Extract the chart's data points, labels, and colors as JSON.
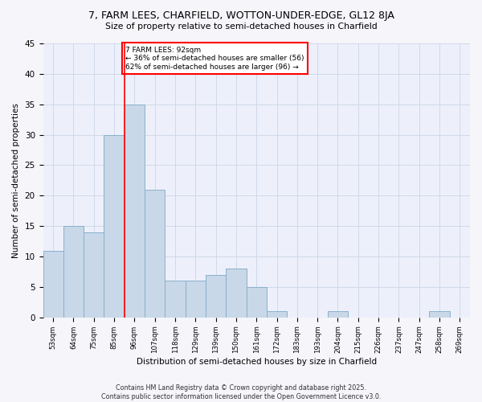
{
  "title1": "7, FARM LEES, CHARFIELD, WOTTON-UNDER-EDGE, GL12 8JA",
  "title2": "Size of property relative to semi-detached houses in Charfield",
  "xlabel": "Distribution of semi-detached houses by size in Charfield",
  "ylabel": "Number of semi-detached properties",
  "categories": [
    "53sqm",
    "64sqm",
    "75sqm",
    "85sqm",
    "96sqm",
    "107sqm",
    "118sqm",
    "129sqm",
    "139sqm",
    "150sqm",
    "161sqm",
    "172sqm",
    "183sqm",
    "193sqm",
    "204sqm",
    "215sqm",
    "226sqm",
    "237sqm",
    "247sqm",
    "258sqm",
    "269sqm"
  ],
  "values": [
    11,
    15,
    14,
    30,
    35,
    21,
    6,
    6,
    7,
    8,
    5,
    1,
    0,
    0,
    1,
    0,
    0,
    0,
    0,
    1,
    0
  ],
  "bar_color": "#c8d8e8",
  "bar_edge_color": "#8ab0cc",
  "subject_line_color": "red",
  "annotation_text": "7 FARM LEES: 92sqm\n← 36% of semi-detached houses are smaller (56)\n62% of semi-detached houses are larger (96) →",
  "ylim": [
    0,
    45
  ],
  "yticks": [
    0,
    5,
    10,
    15,
    20,
    25,
    30,
    35,
    40,
    45
  ],
  "grid_color": "#d0d8e8",
  "bg_color": "#edf0fb",
  "fig_bg_color": "#f5f5fa",
  "footer1": "Contains HM Land Registry data © Crown copyright and database right 2025.",
  "footer2": "Contains public sector information licensed under the Open Government Licence v3.0."
}
